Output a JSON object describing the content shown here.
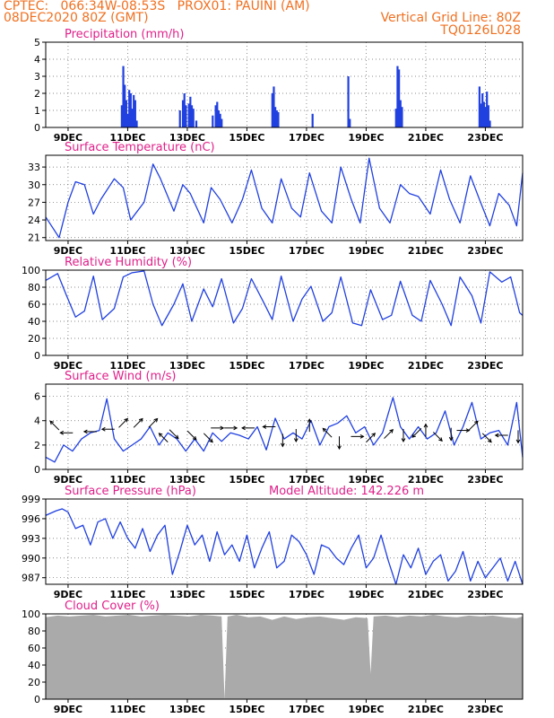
{
  "header": {
    "line1_left": "CPTEC:   066:34W-08:53S   PROX01: PAUINI (AM)",
    "line2_left": "08DEC2020 80Z (GMT)",
    "line2_right": "Vertical Grid Line: 80Z",
    "line3_right": "TQ0126L028"
  },
  "colors": {
    "header": "#f07020",
    "title": "#e0208a",
    "series": "#2040e0",
    "cloud": "#aaaaaa"
  },
  "chart_data": [
    {
      "type": "bar",
      "title": "Precipitation  (mm/h)",
      "x_tick_labels": [
        "9DEC",
        "11DEC",
        "13DEC",
        "15DEC",
        "17DEC",
        "19DEC",
        "21DEC",
        "23DEC"
      ],
      "ylim": [
        0,
        5
      ],
      "yticks": [
        0,
        1,
        2,
        3,
        4,
        5
      ],
      "grid": true,
      "events": [
        {
          "t": 2.55,
          "v": 1.3
        },
        {
          "t": 2.6,
          "v": 3.6
        },
        {
          "t": 2.65,
          "v": 2.5
        },
        {
          "t": 2.7,
          "v": 1.6
        },
        {
          "t": 2.75,
          "v": 0.8
        },
        {
          "t": 2.8,
          "v": 2.2
        },
        {
          "t": 2.85,
          "v": 2.0
        },
        {
          "t": 2.9,
          "v": 1.1
        },
        {
          "t": 2.95,
          "v": 1.9
        },
        {
          "t": 3.0,
          "v": 1.6
        },
        {
          "t": 3.05,
          "v": 0.4
        },
        {
          "t": 4.5,
          "v": 1.0
        },
        {
          "t": 4.6,
          "v": 1.6
        },
        {
          "t": 4.65,
          "v": 2.0
        },
        {
          "t": 4.7,
          "v": 1.3
        },
        {
          "t": 4.8,
          "v": 1.4
        },
        {
          "t": 4.85,
          "v": 1.8
        },
        {
          "t": 4.9,
          "v": 1.3
        },
        {
          "t": 4.95,
          "v": 1.1
        },
        {
          "t": 5.05,
          "v": 0.4
        },
        {
          "t": 5.6,
          "v": 0.7
        },
        {
          "t": 5.7,
          "v": 1.3
        },
        {
          "t": 5.75,
          "v": 1.5
        },
        {
          "t": 5.8,
          "v": 1.0
        },
        {
          "t": 5.85,
          "v": 0.8
        },
        {
          "t": 5.9,
          "v": 0.5
        },
        {
          "t": 7.6,
          "v": 2.0
        },
        {
          "t": 7.65,
          "v": 2.4
        },
        {
          "t": 7.7,
          "v": 1.2
        },
        {
          "t": 7.75,
          "v": 1.0
        },
        {
          "t": 7.8,
          "v": 0.9
        },
        {
          "t": 8.95,
          "v": 0.8
        },
        {
          "t": 10.15,
          "v": 3.0
        },
        {
          "t": 10.2,
          "v": 0.5
        },
        {
          "t": 11.75,
          "v": 1.1
        },
        {
          "t": 11.8,
          "v": 3.6
        },
        {
          "t": 11.85,
          "v": 3.4
        },
        {
          "t": 11.9,
          "v": 1.6
        },
        {
          "t": 11.95,
          "v": 1.2
        },
        {
          "t": 14.55,
          "v": 2.4
        },
        {
          "t": 14.6,
          "v": 1.4
        },
        {
          "t": 14.65,
          "v": 2.0
        },
        {
          "t": 14.7,
          "v": 1.5
        },
        {
          "t": 14.75,
          "v": 1.2
        },
        {
          "t": 14.8,
          "v": 2.1
        },
        {
          "t": 14.85,
          "v": 1.3
        },
        {
          "t": 14.9,
          "v": 0.4
        }
      ]
    },
    {
      "type": "line",
      "title": "Surface Temperature (nC)",
      "x_tick_labels": [
        "9DEC",
        "11DEC",
        "13DEC",
        "15DEC",
        "17DEC",
        "19DEC",
        "21DEC",
        "23DEC"
      ],
      "ylim": [
        20.5,
        35
      ],
      "yticks": [
        21,
        24,
        27,
        30,
        33
      ],
      "grid": true,
      "x": [
        0.0,
        0.45,
        0.75,
        1.0,
        1.3,
        1.6,
        1.85,
        2.3,
        2.6,
        2.85,
        3.3,
        3.6,
        3.85,
        4.3,
        4.6,
        4.85,
        5.3,
        5.55,
        5.85,
        6.25,
        6.6,
        6.9,
        7.25,
        7.6,
        7.9,
        8.25,
        8.55,
        8.85,
        9.25,
        9.6,
        9.9,
        10.25,
        10.55,
        10.85,
        11.2,
        11.55,
        11.9,
        12.2,
        12.5,
        12.9,
        13.25,
        13.55,
        13.9,
        14.25,
        14.55,
        14.9,
        15.2,
        15.55,
        15.8,
        16.0
      ],
      "y": [
        24.5,
        21.0,
        27.0,
        30.5,
        30.0,
        25.0,
        27.5,
        31.0,
        29.5,
        24.0,
        27.0,
        33.5,
        31.0,
        25.5,
        30.0,
        28.5,
        23.5,
        29.5,
        27.5,
        23.5,
        27.5,
        32.5,
        26.0,
        23.5,
        31.0,
        26.0,
        24.5,
        32.0,
        25.5,
        23.5,
        33.0,
        27.5,
        23.5,
        34.5,
        26.0,
        23.5,
        30.0,
        28.5,
        28.0,
        25.0,
        32.5,
        27.5,
        23.5,
        31.5,
        27.5,
        23.0,
        28.5,
        26.5,
        23.0,
        32.0
      ]
    },
    {
      "type": "line",
      "title": "Relative Humidity  (%)",
      "x_tick_labels": [
        "9DEC",
        "11DEC",
        "13DEC",
        "15DEC",
        "17DEC",
        "19DEC",
        "21DEC",
        "23DEC"
      ],
      "ylim": [
        0,
        100
      ],
      "yticks": [
        0,
        20,
        40,
        60,
        80,
        100
      ],
      "grid": true,
      "x": [
        0.0,
        0.4,
        0.7,
        1.0,
        1.3,
        1.6,
        1.9,
        2.3,
        2.6,
        2.9,
        3.3,
        3.6,
        3.9,
        4.3,
        4.6,
        4.9,
        5.3,
        5.6,
        5.9,
        6.3,
        6.6,
        6.9,
        7.3,
        7.6,
        7.9,
        8.3,
        8.6,
        8.9,
        9.3,
        9.6,
        9.9,
        10.3,
        10.6,
        10.9,
        11.3,
        11.6,
        11.9,
        12.3,
        12.6,
        12.9,
        13.3,
        13.6,
        13.9,
        14.3,
        14.6,
        14.9,
        15.3,
        15.6,
        15.9,
        16.0
      ],
      "y": [
        88,
        96,
        70,
        45,
        52,
        93,
        42,
        55,
        92,
        97,
        99,
        60,
        35,
        60,
        84,
        40,
        78,
        57,
        90,
        38,
        55,
        90,
        63,
        42,
        93,
        40,
        66,
        81,
        40,
        50,
        92,
        38,
        35,
        77,
        42,
        47,
        87,
        47,
        40,
        88,
        60,
        35,
        92,
        70,
        38,
        98,
        86,
        92,
        50,
        47
      ]
    },
    {
      "type": "line",
      "title": "Surface Wind  (m/s)",
      "x_tick_labels": [
        "9DEC",
        "11DEC",
        "13DEC",
        "15DEC",
        "17DEC",
        "19DEC",
        "21DEC",
        "23DEC"
      ],
      "ylim": [
        0,
        7
      ],
      "yticks": [
        0,
        2,
        4,
        6
      ],
      "grid": true,
      "x": [
        0.0,
        0.3,
        0.6,
        0.9,
        1.2,
        1.5,
        1.8,
        2.05,
        2.3,
        2.6,
        2.9,
        3.2,
        3.5,
        3.8,
        4.1,
        4.4,
        4.7,
        5.0,
        5.3,
        5.6,
        5.9,
        6.2,
        6.5,
        6.8,
        7.1,
        7.4,
        7.7,
        8.0,
        8.3,
        8.6,
        8.9,
        9.2,
        9.5,
        9.8,
        10.1,
        10.4,
        10.7,
        11.0,
        11.3,
        11.65,
        11.9,
        12.2,
        12.5,
        12.8,
        13.1,
        13.4,
        13.7,
        14.0,
        14.3,
        14.6,
        14.9,
        15.2,
        15.5,
        15.8,
        16.0
      ],
      "y": [
        1.0,
        0.6,
        2.0,
        1.5,
        2.5,
        3.0,
        3.2,
        5.8,
        2.5,
        1.5,
        2.0,
        2.5,
        3.5,
        2.0,
        3.0,
        2.5,
        1.5,
        2.5,
        1.5,
        3.0,
        2.3,
        3.0,
        2.8,
        2.5,
        3.5,
        1.6,
        4.2,
        2.5,
        3.0,
        2.5,
        4.0,
        2.0,
        3.5,
        3.8,
        4.4,
        3.0,
        3.5,
        2.0,
        3.0,
        5.9,
        3.5,
        2.5,
        3.5,
        2.5,
        3.0,
        4.8,
        2.0,
        3.5,
        5.5,
        2.5,
        3.0,
        3.2,
        2.0,
        5.5,
        1.0
      ],
      "arrows": [
        {
          "t": 0.3,
          "v": 3.6,
          "dir": "nw"
        },
        {
          "t": 0.7,
          "v": 3.0,
          "dir": "w"
        },
        {
          "t": 1.5,
          "v": 3.1,
          "dir": "w"
        },
        {
          "t": 2.1,
          "v": 3.3,
          "dir": "w"
        },
        {
          "t": 2.6,
          "v": 3.8,
          "dir": "ne"
        },
        {
          "t": 3.1,
          "v": 3.8,
          "dir": "ne"
        },
        {
          "t": 3.6,
          "v": 3.8,
          "dir": "ne"
        },
        {
          "t": 3.95,
          "v": 2.6,
          "dir": "nw"
        },
        {
          "t": 4.3,
          "v": 2.9,
          "dir": "se"
        },
        {
          "t": 4.9,
          "v": 2.8,
          "dir": "se"
        },
        {
          "t": 5.45,
          "v": 2.6,
          "dir": "se"
        },
        {
          "t": 5.75,
          "v": 3.4,
          "dir": "e"
        },
        {
          "t": 6.2,
          "v": 3.4,
          "dir": "e"
        },
        {
          "t": 6.8,
          "v": 3.4,
          "dir": "w"
        },
        {
          "t": 7.5,
          "v": 3.5,
          "dir": "w"
        },
        {
          "t": 7.95,
          "v": 2.4,
          "dir": "s"
        },
        {
          "t": 8.4,
          "v": 2.8,
          "dir": "s"
        },
        {
          "t": 8.85,
          "v": 3.6,
          "dir": "n"
        },
        {
          "t": 9.45,
          "v": 3.0,
          "dir": "nw"
        },
        {
          "t": 9.85,
          "v": 2.2,
          "dir": "s"
        },
        {
          "t": 10.45,
          "v": 2.7,
          "dir": "e"
        },
        {
          "t": 10.9,
          "v": 2.6,
          "dir": "ne"
        },
        {
          "t": 11.5,
          "v": 2.9,
          "dir": "ne"
        },
        {
          "t": 12.0,
          "v": 2.8,
          "dir": "s"
        },
        {
          "t": 12.45,
          "v": 3.0,
          "dir": "sw"
        },
        {
          "t": 12.75,
          "v": 3.2,
          "dir": "n"
        },
        {
          "t": 13.15,
          "v": 2.7,
          "dir": "se"
        },
        {
          "t": 13.6,
          "v": 2.9,
          "dir": "s"
        },
        {
          "t": 14.0,
          "v": 3.2,
          "dir": "e"
        },
        {
          "t": 14.35,
          "v": 3.6,
          "dir": "ne"
        },
        {
          "t": 14.8,
          "v": 2.6,
          "dir": "se"
        },
        {
          "t": 15.3,
          "v": 2.8,
          "dir": "w"
        },
        {
          "t": 15.85,
          "v": 2.7,
          "dir": "s"
        }
      ]
    },
    {
      "type": "line",
      "title": "Surface Pressure  (hPa)",
      "annotation": "Model Altitude:  142.226  m",
      "x_tick_labels": [
        "9DEC",
        "11DEC",
        "13DEC",
        "15DEC",
        "17DEC",
        "19DEC",
        "21DEC",
        "23DEC"
      ],
      "ylim": [
        986,
        999
      ],
      "yticks": [
        987,
        990,
        993,
        996,
        999
      ],
      "grid": true,
      "x": [
        0.0,
        0.35,
        0.55,
        0.75,
        1.0,
        1.25,
        1.5,
        1.75,
        2.0,
        2.25,
        2.5,
        2.75,
        3.0,
        3.25,
        3.5,
        3.75,
        4.0,
        4.25,
        4.5,
        4.75,
        5.0,
        5.25,
        5.5,
        5.75,
        6.0,
        6.25,
        6.5,
        6.75,
        7.0,
        7.25,
        7.5,
        7.75,
        8.0,
        8.25,
        8.5,
        8.75,
        9.0,
        9.25,
        9.5,
        9.75,
        10.0,
        10.25,
        10.5,
        10.75,
        11.0,
        11.25,
        11.5,
        11.75,
        12.0,
        12.25,
        12.5,
        12.75,
        13.0,
        13.25,
        13.5,
        13.75,
        14.0,
        14.25,
        14.5,
        14.75,
        15.0,
        15.25,
        15.5,
        15.75,
        16.0
      ],
      "y": [
        996.5,
        997.2,
        997.5,
        997.0,
        994.5,
        995.0,
        992.0,
        995.5,
        996.0,
        993.0,
        995.5,
        993.0,
        991.5,
        994.5,
        991.0,
        993.5,
        995.0,
        987.5,
        991.0,
        995.0,
        992.0,
        993.5,
        989.5,
        994.0,
        990.5,
        992.0,
        989.5,
        993.5,
        988.5,
        991.5,
        994.0,
        988.5,
        989.5,
        993.5,
        992.5,
        990.5,
        987.5,
        992.0,
        991.5,
        990.0,
        989.0,
        991.5,
        993.5,
        988.5,
        990.0,
        993.5,
        989.5,
        986.0,
        990.5,
        988.5,
        991.5,
        987.5,
        989.5,
        990.5,
        986.5,
        988.0,
        991.0,
        986.5,
        989.5,
        987.0,
        988.5,
        990.0,
        986.5,
        989.5,
        986.0
      ]
    },
    {
      "type": "area",
      "title": "Cloud Cover  (%)",
      "x_tick_labels": [
        "9DEC",
        "11DEC",
        "13DEC",
        "15DEC",
        "17DEC",
        "19DEC",
        "21DEC",
        "23DEC"
      ],
      "ylim": [
        0,
        100
      ],
      "yticks": [
        0,
        20,
        40,
        60,
        80,
        100
      ],
      "grid": true,
      "x": [
        0.0,
        0.4,
        0.8,
        1.2,
        1.6,
        2.0,
        2.4,
        2.8,
        3.2,
        3.6,
        4.0,
        4.4,
        4.8,
        5.2,
        5.6,
        5.9,
        6.0,
        6.1,
        6.4,
        6.8,
        7.2,
        7.6,
        8.0,
        8.4,
        8.8,
        9.2,
        9.6,
        10.0,
        10.4,
        10.8,
        10.9,
        11.0,
        11.4,
        11.8,
        12.2,
        12.6,
        13.0,
        13.4,
        13.8,
        14.2,
        14.6,
        15.0,
        15.4,
        15.8,
        16.0
      ],
      "y": [
        96,
        98,
        97,
        98,
        99,
        97,
        98,
        99,
        97,
        98,
        99,
        98,
        97,
        99,
        98,
        97,
        0,
        97,
        99,
        96,
        97,
        93,
        97,
        94,
        96,
        97,
        95,
        93,
        96,
        95,
        30,
        97,
        98,
        96,
        98,
        97,
        99,
        97,
        96,
        98,
        97,
        98,
        96,
        95,
        97
      ]
    }
  ]
}
